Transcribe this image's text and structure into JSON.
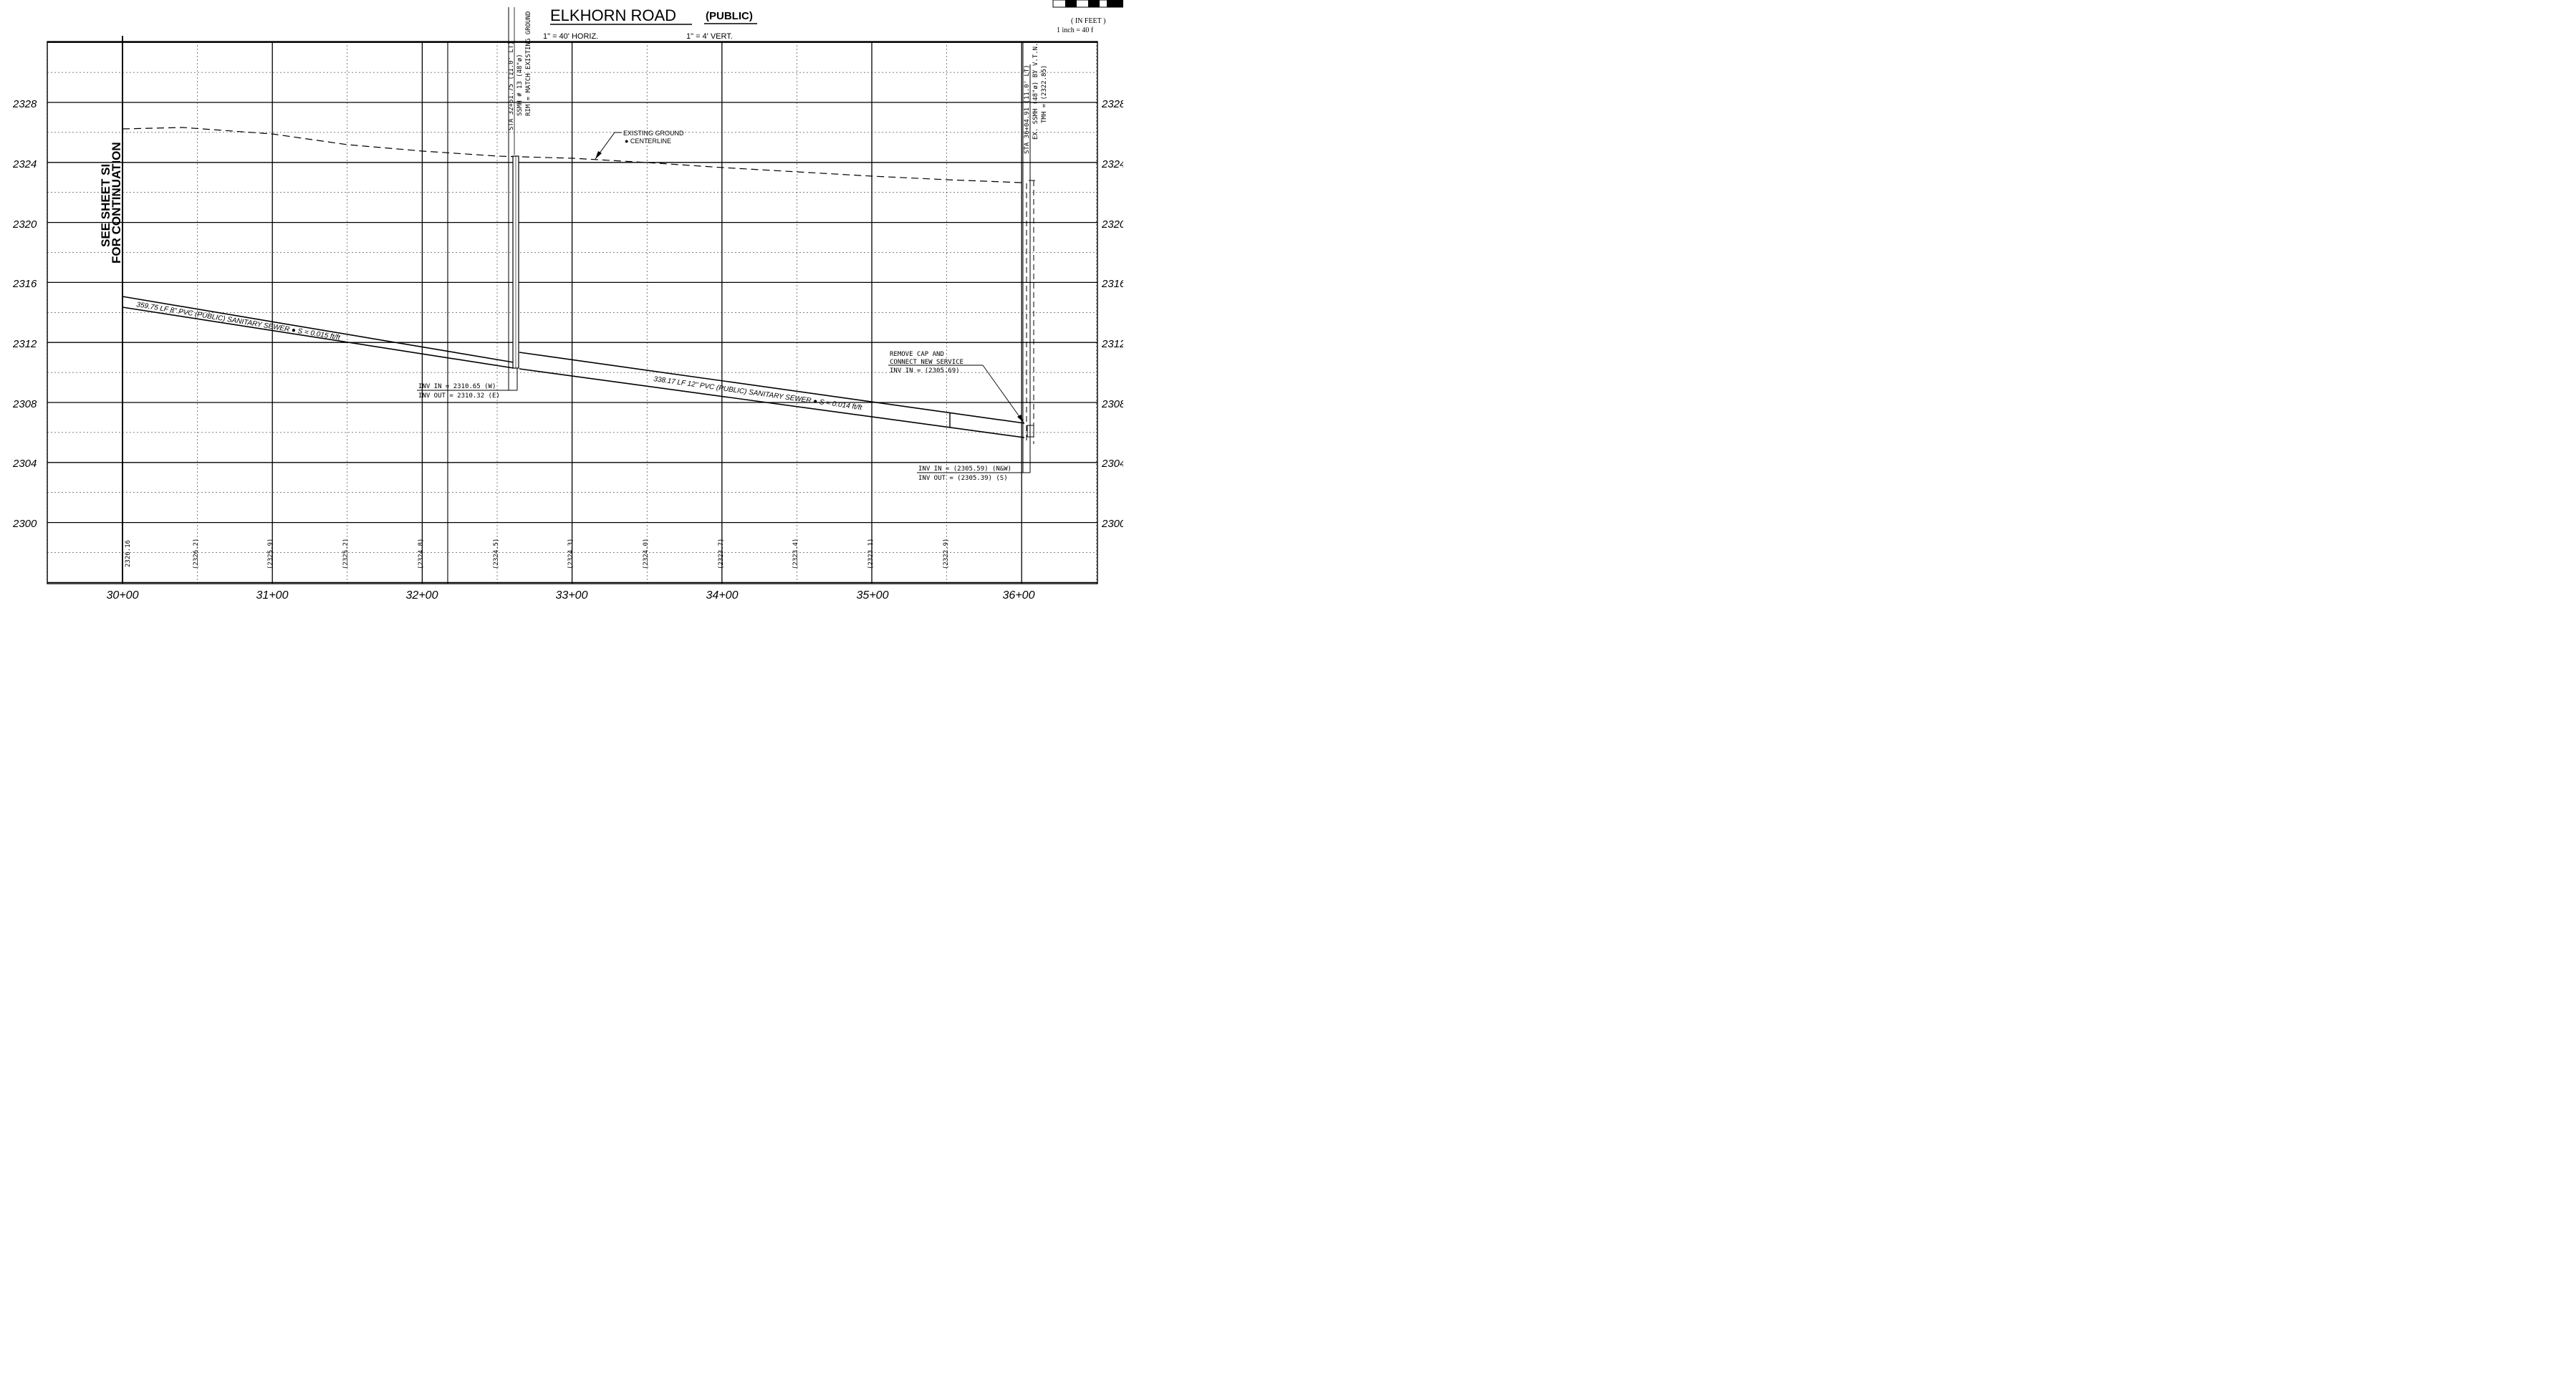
{
  "title": {
    "main": "ELKHORN ROAD",
    "sub": "(PUBLIC)",
    "scale_horiz": "1\" = 40' HORIZ.",
    "scale_vert": "1\" = 4' VERT."
  },
  "scale_bar": {
    "units": "( IN FEET )",
    "ratio": "1 inch = 40  f"
  },
  "continuation": {
    "line1": "SEE SHEET SI",
    "line2": "FOR CONTINUATION"
  },
  "elevations_left": [
    "2328",
    "2324",
    "2320",
    "2316",
    "2312",
    "2308",
    "2304",
    "2300"
  ],
  "elevations_right": [
    "2328",
    "2324",
    "2320",
    "2316",
    "2312",
    "2308",
    "2304",
    "2300"
  ],
  "station_labels": [
    "30+00",
    "31+00",
    "32+00",
    "33+00",
    "34+00",
    "35+00",
    "36+00"
  ],
  "ground_elevations": [
    "2326.16",
    "(2326.2)",
    "(2325.9)",
    "(2325.2)",
    "(2324.8)",
    "(2324.5)",
    "(2324.3)",
    "(2324.0)",
    "(2323.7)",
    "(2323.4)",
    "(2323.1)",
    "(2322.9)"
  ],
  "manhole_1": {
    "line1": "STA 32+61.75 (11.0' LT)",
    "line2": "SSMH # 13 (48\"ø)",
    "line3": "RIM = MATCH EXISTING GROUND",
    "inv_in": "INV IN = 2310.65 (W)",
    "inv_out": "INV OUT = 2310.32 (E)"
  },
  "manhole_2": {
    "line1": "STA 36+04.91 (11.0' LT)",
    "line2": "EX. SSMH (48\"ø) BY V.T.N.",
    "line3": "TMH = (2322.85)",
    "inv_in": "INV IN = (2305.59) (N&W)",
    "inv_out": "INV OUT = (2305.39) (S)"
  },
  "existing_ground_label": {
    "line1": "EXISTING GROUND",
    "line2": "● CENTERLINE"
  },
  "service_note": {
    "line1": "REMOVE CAP AND",
    "line2": "CONNECT NEW SERVICE",
    "line3": "INV IN = (2305.69)"
  },
  "pipe_1_label": "359.75 LF 8\" PVC (PUBLIC) SANITARY SEWER ● S = 0.015 ft/ft",
  "pipe_2_label": "338.17 LF 12\" PVC (PUBLIC) SANITARY SEWER ● S = 0.014 ft/ft"
}
